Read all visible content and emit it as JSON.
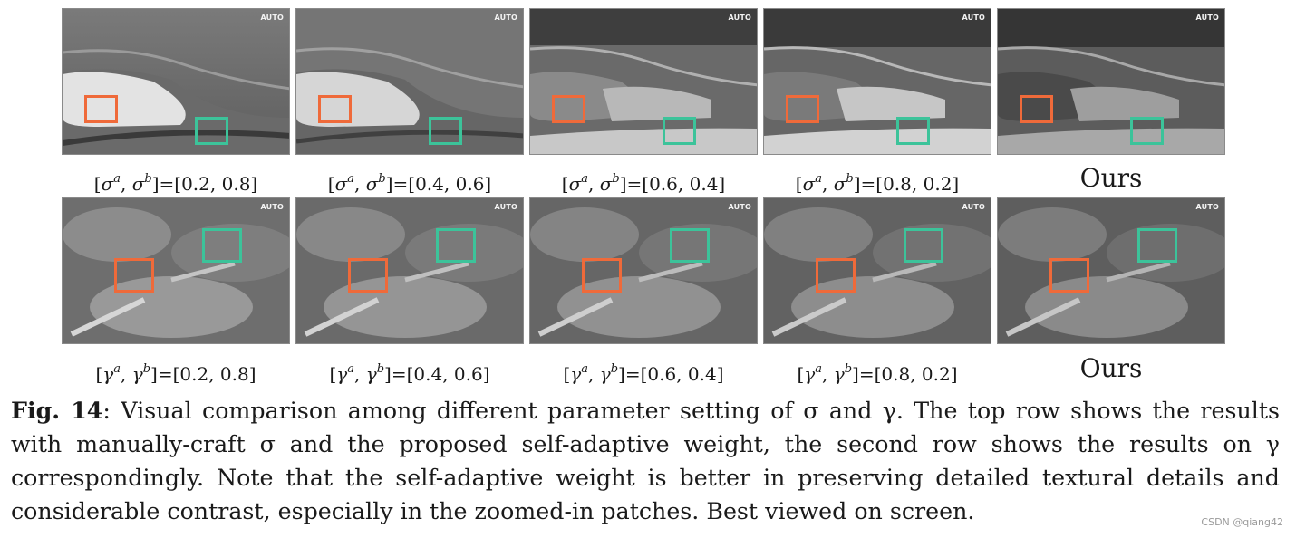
{
  "colors": {
    "orange_box": "#ef6a3a",
    "green_box": "#3cc39a"
  },
  "auto_tag": "AUTO",
  "top_row": [
    {
      "caption_sym": "σ",
      "caption_value": "[0.2, 0.8]"
    },
    {
      "caption_sym": "σ",
      "caption_value": "[0.4, 0.6]"
    },
    {
      "caption_sym": "σ",
      "caption_value": "[0.6, 0.4]"
    },
    {
      "caption_sym": "σ",
      "caption_value": "[0.8, 0.2]"
    },
    {
      "caption_ours": "Ours"
    }
  ],
  "bottom_row": [
    {
      "caption_sym": "γ",
      "caption_value": "[0.2, 0.8]"
    },
    {
      "caption_sym": "γ",
      "caption_value": "[0.4, 0.6]"
    },
    {
      "caption_sym": "γ",
      "caption_value": "[0.6, 0.4]"
    },
    {
      "caption_sym": "γ",
      "caption_value": "[0.8, 0.2]"
    },
    {
      "caption_ours": "Ours"
    }
  ],
  "caption": {
    "label": "Fig. 14",
    "text": ": Visual comparison among different parameter setting of σ and γ. The top row shows the results with manually-craft σ and the proposed self-adaptive weight, the second row shows the results on γ correspondingly. Note that the self-adaptive weight is better in preserving detailed textural details and considerable contrast, especially in the zoomed-in patches. Best viewed on screen."
  },
  "watermark": "CSDN @qiang42"
}
